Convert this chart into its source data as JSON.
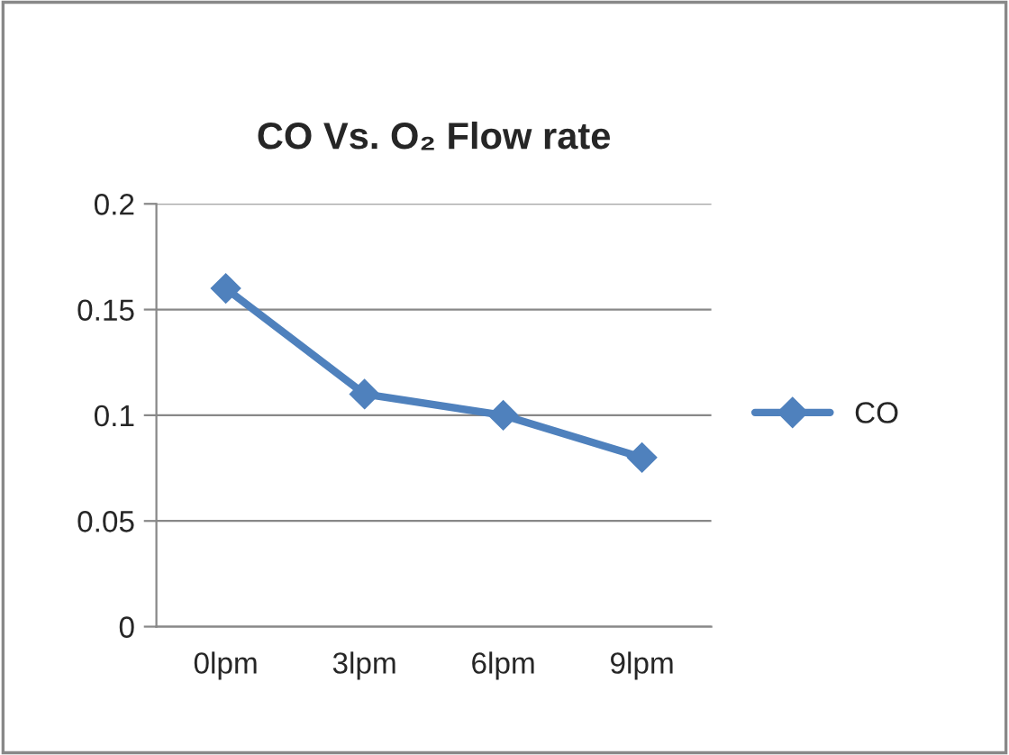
{
  "chart_data": {
    "type": "line",
    "title": "CO Vs. O₂ Flow rate",
    "categories": [
      "0lpm",
      "3lpm",
      "6lpm",
      "9lpm"
    ],
    "series": [
      {
        "name": "CO",
        "color": "#4f81bd",
        "values": [
          0.16,
          0.11,
          0.1,
          0.08
        ]
      }
    ],
    "ylim": [
      0,
      0.2
    ],
    "yticks": [
      0,
      0.05,
      0.1,
      0.15,
      0.2
    ],
    "grid": "y",
    "legend": "right",
    "marker": "diamond",
    "line_style": "solid"
  }
}
